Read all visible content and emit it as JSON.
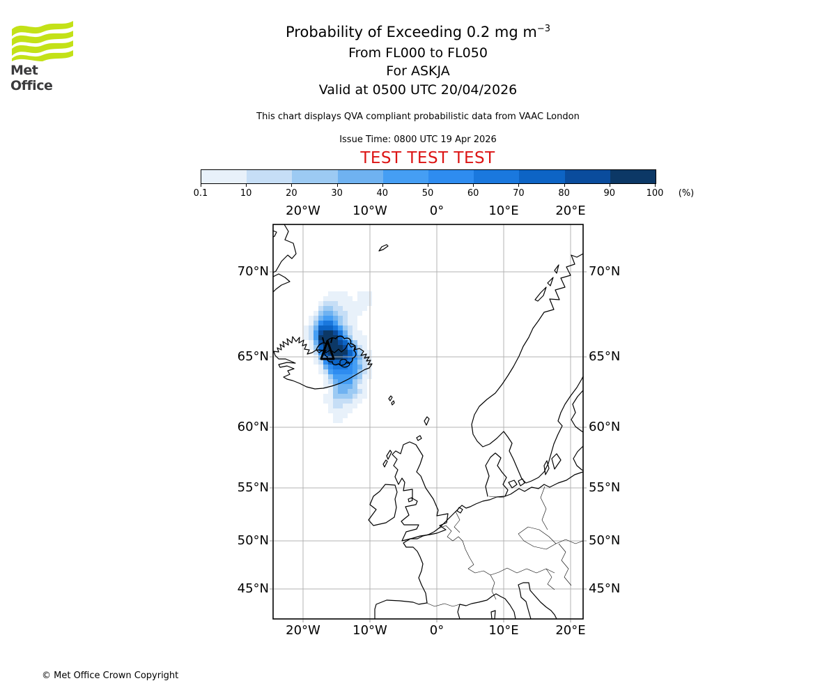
{
  "header": {
    "logo_text": "Met Office",
    "title_main": "Probability of Exceeding 0.2 mg m",
    "title_exponent": "−3",
    "subtitle_flight_levels": "From FL000 to FL050",
    "subtitle_volcano": "For ASKJA",
    "subtitle_valid": "Valid at 0500 UTC 20/04/2026",
    "note": "This chart displays QVA compliant probabilistic data from VAAC London",
    "issue_time": "Issue Time: 0800 UTC 19 Apr 2026",
    "test_banner": "TEST TEST TEST"
  },
  "footer": {
    "copyright": "© Met Office Crown Copyright"
  },
  "colors": {
    "test_red": "#dc1414",
    "logo_green": "#c3e117",
    "logo_text_gray": "#3b3b3d",
    "grid_gray": "#b3b3b3",
    "coast_black": "#000000"
  },
  "chart_data": {
    "type": "heatmap",
    "title": "Probability of Exceeding 0.2 mg m−3",
    "source": "VAAC London",
    "volcano": {
      "name": "ASKJA",
      "marker": "black triangle",
      "approx_location": "16.8°W 65.0°N"
    },
    "colorbar": {
      "unit": "(%)",
      "tick_labels": [
        "0.1",
        "10",
        "20",
        "30",
        "40",
        "50",
        "60",
        "70",
        "80",
        "90",
        "100"
      ],
      "colors": [
        "#e8f1fa",
        "#c6def6",
        "#9ccaf3",
        "#6fb2f1",
        "#459ef4",
        "#2e8cf0",
        "#1a78de",
        "#0d64c5",
        "#0a4c9d",
        "#0c3866"
      ]
    },
    "axes": {
      "lon_labels": [
        "20°W",
        "10°W",
        "0°",
        "10°E",
        "20°E"
      ],
      "lat_labels": [
        "70°N",
        "65°N",
        "60°N",
        "55°N",
        "50°N",
        "45°N"
      ],
      "grid": true
    },
    "plume": {
      "description": "Ash-cloud exceedance probability field over Iceland; each cell value is a colorbar bin index (1=0.1–10% … A=90–100%)",
      "approx_lon_extent": [
        "20°W",
        "9°W"
      ],
      "approx_lat_extent": [
        "60°N",
        "69°N"
      ],
      "rows": [
        "000001111001110",
        "000011111101110",
        "000122211111110",
        "000233221111100",
        "001344322111000",
        "012455432110000",
        "013677532110000",
        "124888753210000",
        "1259AA974211000",
        "125AAAA85311100",
        "0149AAA98531100",
        "0138AAAA9642100",
        "00269AAAA863110",
        "001489AA9864210",
        "001268888753210",
        "000146777654210",
        "000125666653210",
        "000013555543110",
        "000012455532100",
        "000011344431100",
        "000001344332100",
        "000011333321100",
        "000011222211000",
        "000001221110000",
        "000001111100000",
        "000000111000000",
        "000000110000000"
      ]
    }
  }
}
